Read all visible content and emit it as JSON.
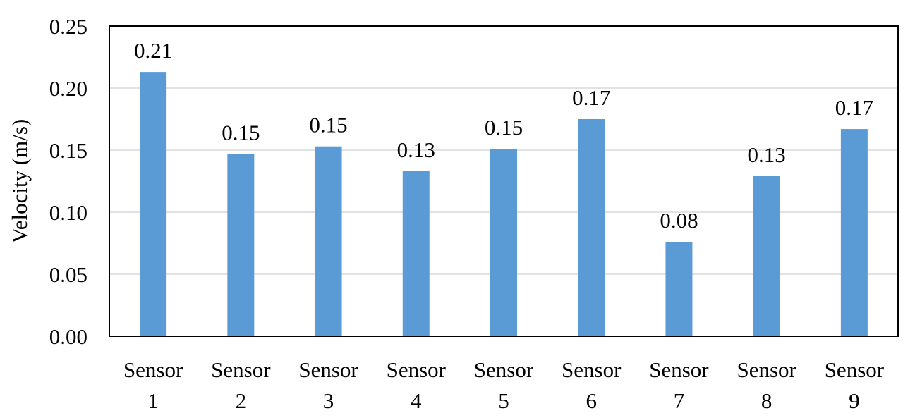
{
  "chart_data": {
    "type": "bar",
    "title": "",
    "xlabel": "",
    "ylabel": "Velocity (m/s)",
    "ylim": [
      0,
      0.25
    ],
    "yticks": [
      "0.00",
      "0.05",
      "0.10",
      "0.15",
      "0.20",
      "0.25"
    ],
    "grid": true,
    "legend": "none",
    "categories": [
      [
        "Sensor",
        "1"
      ],
      [
        "Sensor",
        "2"
      ],
      [
        "Sensor",
        "3"
      ],
      [
        "Sensor",
        "4"
      ],
      [
        "Sensor",
        "5"
      ],
      [
        "Sensor",
        "6"
      ],
      [
        "Sensor",
        "7"
      ],
      [
        "Sensor",
        "8"
      ],
      [
        "Sensor",
        "9"
      ]
    ],
    "values": [
      0.213,
      0.147,
      0.153,
      0.133,
      0.151,
      0.175,
      0.076,
      0.129,
      0.167
    ],
    "data_labels": [
      "0.21",
      "0.15",
      "0.15",
      "0.13",
      "0.15",
      "0.17",
      "0.08",
      "0.13",
      "0.17"
    ],
    "colors": {
      "bar": "#5B9BD5",
      "grid": "#D9D9D9",
      "frame": "#000000"
    }
  }
}
